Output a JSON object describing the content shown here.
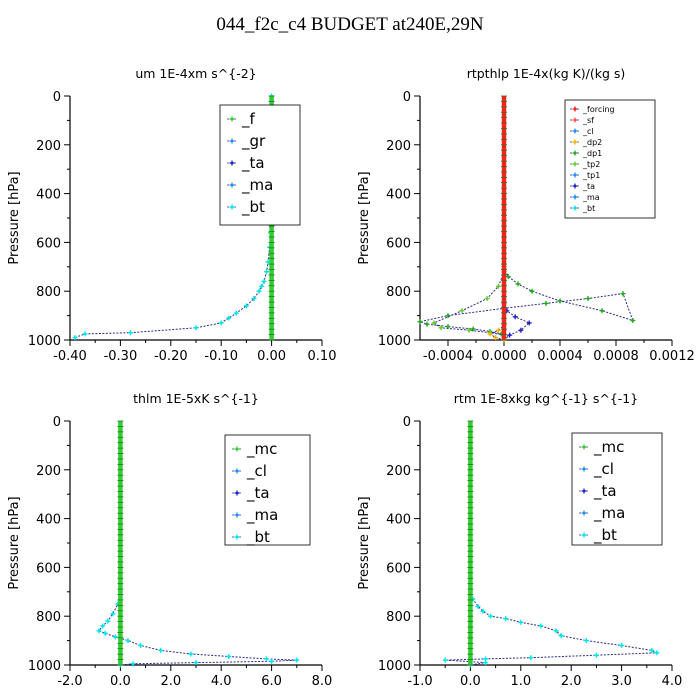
{
  "figure_title": "044_f2c_c4  BUDGET at240E,29N",
  "colors": {
    "axis": "#000000",
    "line": "#2a2a8a",
    "mc": "#32cd32",
    "f": "#32cd32",
    "cl": "#1e90ff",
    "gr": "#1e90ff",
    "ta": "#2222cc",
    "ma": "#1e90ff",
    "bt": "#00e5ee",
    "forcing": "#ff2020",
    "sf": "#ff5050",
    "dp2": "#ffb000",
    "dp1": "#22aa22",
    "tp2": "#66cc33",
    "tp1": "#1e90ff"
  },
  "chart_data": [
    {
      "type": "line",
      "title": "um   1E-4xm s^{-2}",
      "ylabel": "Pressure [hPa]",
      "xlim": [
        -0.4,
        0.1
      ],
      "ylim": [
        1000,
        0
      ],
      "y_inverted": true,
      "xticks": [
        "-0.40",
        "-0.30",
        "-0.20",
        "-0.10",
        "0.00",
        "0.10"
      ],
      "yticks": [
        "0",
        "200",
        "400",
        "600",
        "800",
        "1000"
      ],
      "legend_position": "top-right",
      "legend_entries": [
        "_f",
        "_gr",
        "_ta",
        "_ma",
        "_bt"
      ],
      "series": [
        {
          "name": "_bt",
          "color_key": "bt",
          "x": [
            -0.39,
            -0.37,
            -0.28,
            -0.15,
            -0.1,
            -0.085,
            -0.07,
            -0.05,
            -0.035,
            -0.025,
            -0.02,
            -0.015,
            -0.01,
            -0.007,
            -0.004,
            -0.002,
            0.0,
            0.0
          ],
          "y": [
            990,
            975,
            970,
            950,
            930,
            910,
            890,
            860,
            830,
            800,
            780,
            760,
            720,
            680,
            620,
            560,
            300,
            0
          ]
        },
        {
          "name": "_f",
          "color_key": "f",
          "x": [
            0.0,
            0.0
          ],
          "y": [
            0,
            1000
          ]
        }
      ]
    },
    {
      "type": "line",
      "title": "rtpthlp   1E-4x(kg K)/(kg s)",
      "ylabel": "Pressure [hPa]",
      "xlim": [
        -0.0006,
        0.0012
      ],
      "ylim": [
        1000,
        0
      ],
      "y_inverted": true,
      "xticks": [
        "-0.0004",
        "0.0000",
        "0.0004",
        "0.0008",
        "0.0012"
      ],
      "xtick_values": [
        -0.0004,
        0.0,
        0.0004,
        0.0008,
        0.0012
      ],
      "yticks": [
        "0",
        "200",
        "400",
        "600",
        "800",
        "1000"
      ],
      "legend_position": "top-right",
      "legend_entries": [
        "_forcing",
        "_sf",
        "_cl",
        "_dp2",
        "_dp1",
        "_tp2",
        "_tp1",
        "_ta",
        "_ma",
        "_bt"
      ],
      "series": [
        {
          "name": "_dp1",
          "color_key": "dp1",
          "x": [
            0.0,
            -2e-05,
            -0.0001,
            -0.00022,
            -0.0004,
            -0.00055,
            -0.0006,
            -0.0004,
            0.0,
            0.0003,
            0.0006,
            0.00085,
            0.00092,
            0.0007,
            0.0004,
            0.0002,
            0.0001,
            3e-05,
            0.0
          ],
          "y": [
            990,
            975,
            965,
            955,
            945,
            935,
            925,
            900,
            870,
            850,
            830,
            810,
            920,
            880,
            840,
            800,
            770,
            740,
            700
          ]
        },
        {
          "name": "_tp2",
          "color_key": "tp2",
          "x": [
            0.0,
            -0.0001,
            -0.00025,
            -0.00045,
            -0.0005,
            -0.0003,
            -0.00012,
            -4e-05,
            0.0
          ],
          "y": [
            980,
            970,
            960,
            950,
            930,
            880,
            830,
            780,
            720
          ]
        },
        {
          "name": "_ta",
          "color_key": "ta",
          "x": [
            0.0,
            4e-05,
            0.00012,
            0.00018,
            8e-05,
            2e-05,
            0.0
          ],
          "y": [
            1000,
            980,
            960,
            930,
            905,
            880,
            850
          ]
        },
        {
          "name": "_dp2",
          "color_key": "dp2",
          "x": [
            0.0,
            -6e-05,
            -0.0001,
            -4e-05,
            0.0
          ],
          "y": [
            1000,
            990,
            975,
            960,
            940
          ]
        },
        {
          "name": "_forcing",
          "color_key": "forcing",
          "x": [
            0.0,
            0.0
          ],
          "y": [
            0,
            1000
          ]
        }
      ]
    },
    {
      "type": "line",
      "title": "thlm   1E-5xK s^{-1}",
      "ylabel": "Pressure [hPa]",
      "xlim": [
        -2.0,
        8.0
      ],
      "ylim": [
        1000,
        0
      ],
      "y_inverted": true,
      "xticks": [
        "-2.0",
        "0.0",
        "2.0",
        "4.0",
        "6.0",
        "8.0"
      ],
      "yticks": [
        "0",
        "200",
        "400",
        "600",
        "800",
        "1000"
      ],
      "legend_position": "top-right",
      "legend_entries": [
        "_mc",
        "_cl",
        "_ta",
        "_ma",
        "_bt"
      ],
      "series": [
        {
          "name": "_bt",
          "color_key": "bt",
          "x": [
            0.0,
            -0.1,
            -0.3,
            -0.5,
            -0.7,
            -0.85,
            -0.6,
            -0.2,
            0.3,
            0.8,
            1.6,
            2.8,
            4.3,
            5.8,
            7.0,
            6.0,
            3.0,
            0.5,
            0.0
          ],
          "y": [
            700,
            750,
            790,
            820,
            840,
            860,
            870,
            885,
            900,
            920,
            940,
            955,
            965,
            975,
            980,
            985,
            990,
            995,
            1000
          ]
        },
        {
          "name": "_mc",
          "color_key": "mc",
          "x": [
            0.0,
            0.0
          ],
          "y": [
            0,
            1000
          ]
        }
      ]
    },
    {
      "type": "line",
      "title": "rtm   1E-8xkg kg^{-1} s^{-1}",
      "ylabel": "Pressure [hPa]",
      "xlim": [
        -1.0,
        4.0
      ],
      "ylim": [
        1000,
        0
      ],
      "y_inverted": true,
      "xticks": [
        "-1.0",
        "0.0",
        "1.0",
        "2.0",
        "3.0",
        "4.0"
      ],
      "yticks": [
        "0",
        "200",
        "400",
        "600",
        "800",
        "1000"
      ],
      "legend_position": "top-right",
      "legend_entries": [
        "_mc",
        "_cl",
        "_ta",
        "_ma",
        "_bt"
      ],
      "series": [
        {
          "name": "_bt",
          "color_key": "bt",
          "x": [
            0.0,
            0.05,
            0.15,
            0.25,
            0.4,
            0.7,
            1.0,
            1.4,
            1.7,
            1.8,
            2.3,
            3.0,
            3.6,
            3.7,
            2.5,
            1.2,
            0.3,
            -0.5,
            0.3,
            0.0
          ],
          "y": [
            700,
            730,
            760,
            780,
            800,
            810,
            825,
            840,
            860,
            880,
            900,
            920,
            940,
            950,
            960,
            970,
            975,
            980,
            990,
            1000
          ]
        },
        {
          "name": "_mc",
          "color_key": "mc",
          "x": [
            0.0,
            0.0
          ],
          "y": [
            0,
            1000
          ]
        }
      ]
    }
  ]
}
